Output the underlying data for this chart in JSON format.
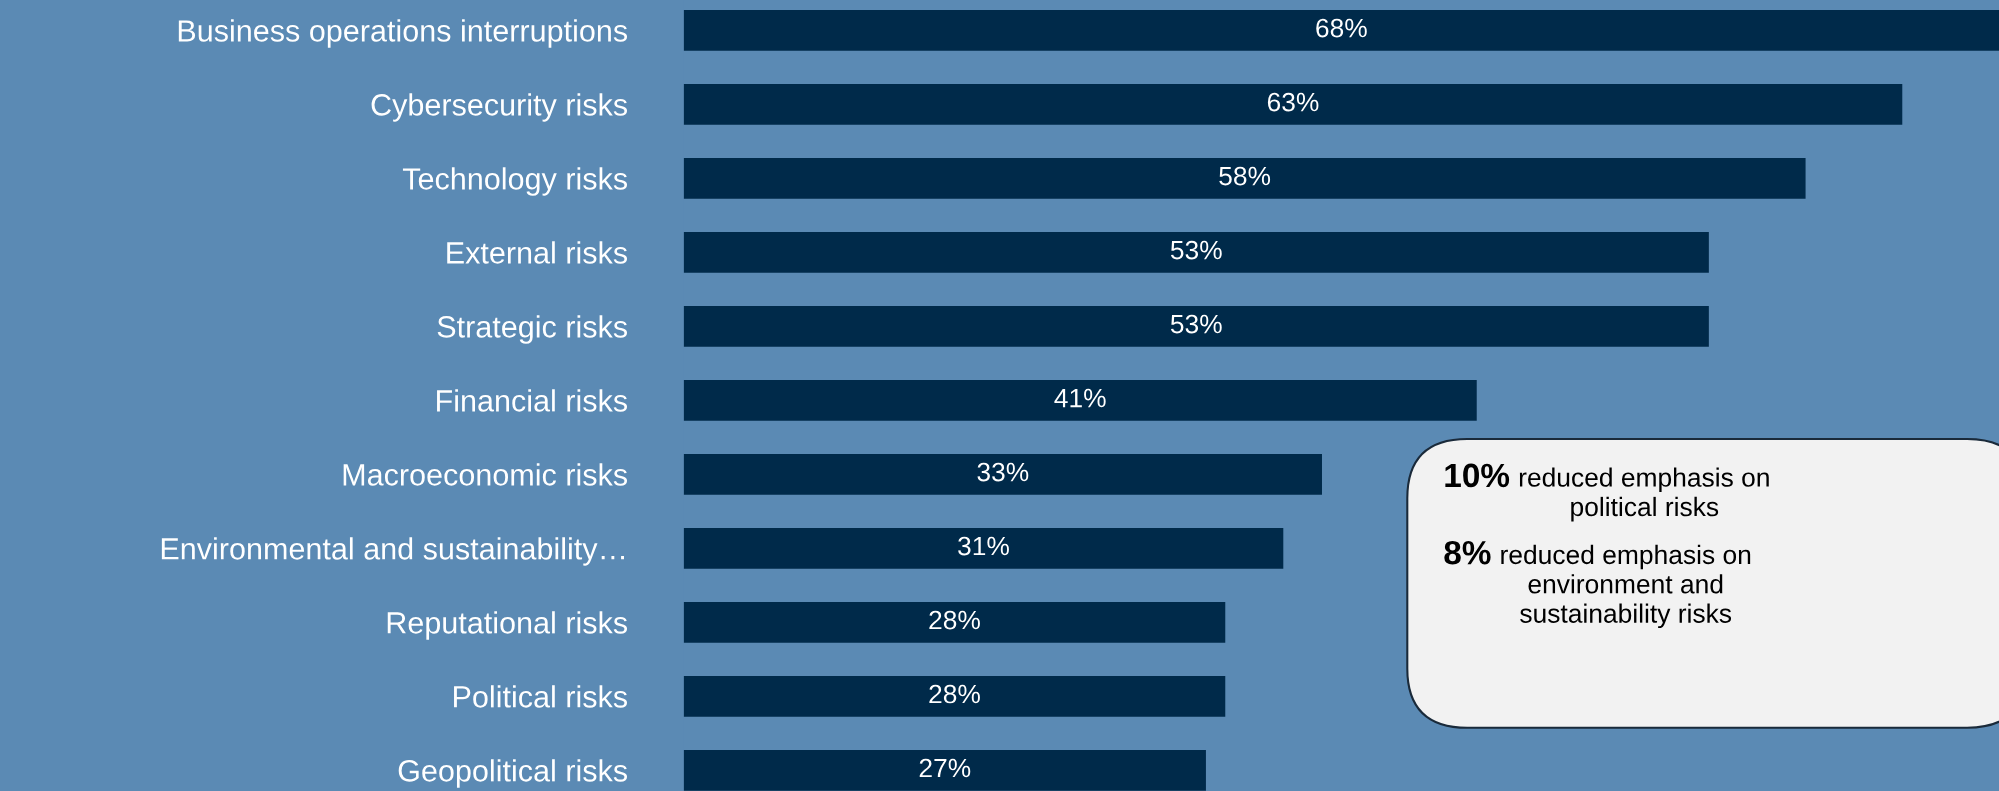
{
  "chart_data": {
    "type": "bar",
    "orientation": "horizontal",
    "categories": [
      "Business operations interruptions",
      "Cybersecurity risks",
      "Technology risks",
      "External risks",
      "Strategic risks",
      "Financial risks",
      "Macroeconomic risks",
      "Environmental and sustainability…",
      "Reputational risks",
      "Political risks",
      "Geopolitical risks"
    ],
    "values": [
      68,
      63,
      58,
      53,
      53,
      41,
      33,
      31,
      28,
      28,
      27
    ],
    "value_labels": [
      "68%",
      "63%",
      "58%",
      "53%",
      "53%",
      "41%",
      "33%",
      "31%",
      "28%",
      "28%",
      "27%"
    ],
    "color": "#002a4a",
    "xlim": [
      0,
      68
    ],
    "annotations": [
      "10% reduced emphasis on\npolitical risks",
      "8% reduced emphasis on\nenvironment and\nsustainability risks"
    ]
  }
}
